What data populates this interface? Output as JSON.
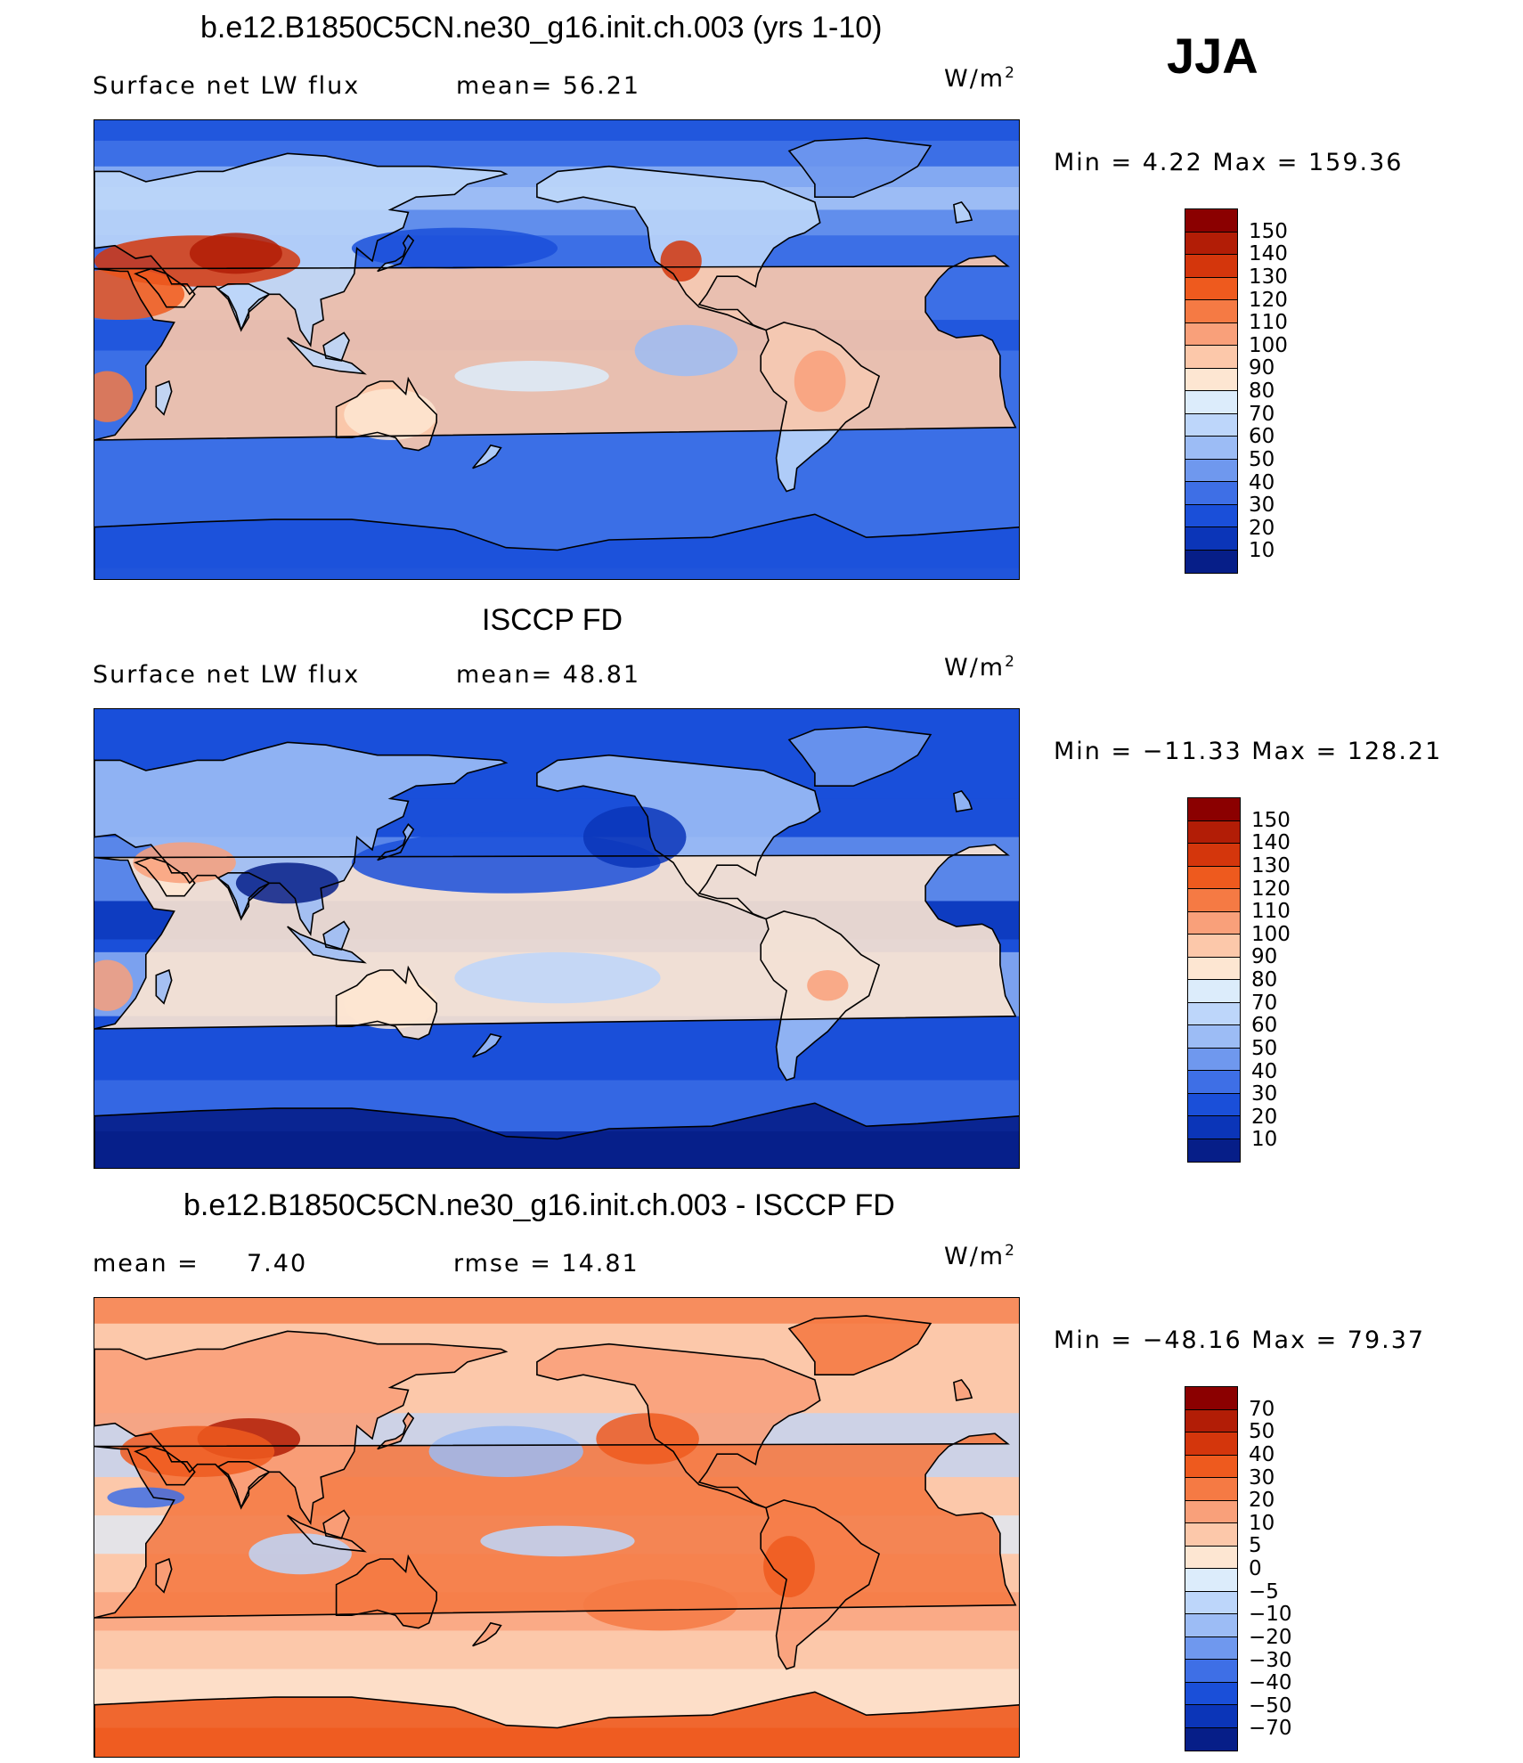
{
  "season": "JJA",
  "units_base": "W/m",
  "units_exp": "2",
  "panels": [
    {
      "title": "b.e12.B1850C5CN.ne30_g16.init.ch.003 (yrs 1-10)",
      "left_label": "Surface net LW flux",
      "stat1": "mean=   56.21",
      "stat2": "",
      "minmax": "Min  =    4.22  Max  =  159.36",
      "colorbar_labels": [
        "150",
        "140",
        "130",
        "120",
        "110",
        "100",
        "90",
        "80",
        "70",
        "60",
        "50",
        "40",
        "30",
        "20",
        "10"
      ],
      "colorbar_colors": [
        "#8b0000",
        "#b21d06",
        "#d4360c",
        "#ee5a1e",
        "#f57a44",
        "#f9a07a",
        "#fcc8aa",
        "#fde6d2",
        "#dcecfb",
        "#bdd6fa",
        "#9cbcf5",
        "#6f98ee",
        "#3e6fe6",
        "#1a4fd9",
        "#0b35b8",
        "#061e88"
      ],
      "palette": "model"
    },
    {
      "title": "ISCCP FD",
      "left_label": "Surface net LW flux",
      "stat1": "mean=   48.81",
      "stat2": "",
      "minmax": "Min  = −11.33  Max  =  128.21",
      "colorbar_labels": [
        "150",
        "140",
        "130",
        "120",
        "110",
        "100",
        "90",
        "80",
        "70",
        "60",
        "50",
        "40",
        "30",
        "20",
        "10"
      ],
      "colorbar_colors": [
        "#8b0000",
        "#b21d06",
        "#d4360c",
        "#ee5a1e",
        "#f57a44",
        "#f9a07a",
        "#fcc8aa",
        "#fde6d2",
        "#dcecfb",
        "#bdd6fa",
        "#9cbcf5",
        "#6f98ee",
        "#3e6fe6",
        "#1a4fd9",
        "#0b35b8",
        "#061e88"
      ],
      "palette": "obs"
    },
    {
      "title": "b.e12.B1850C5CN.ne30_g16.init.ch.003 - ISCCP FD",
      "left_label": "mean  =",
      "stat1": "7.40",
      "stat2": "rmse  =    14.81",
      "minmax": "Min  = −48.16  Max  =   79.37",
      "colorbar_labels": [
        "70",
        "50",
        "40",
        "30",
        "20",
        "10",
        "5",
        "0",
        "−5",
        "−10",
        "−20",
        "−30",
        "−40",
        "−50",
        "−70"
      ],
      "colorbar_colors": [
        "#8b0000",
        "#b21d06",
        "#d4360c",
        "#ee5a1e",
        "#f57a44",
        "#f9a07a",
        "#fcc8aa",
        "#fde6d2",
        "#dcecfb",
        "#bdd6fa",
        "#9cbcf5",
        "#6f98ee",
        "#3e6fe6",
        "#1a4fd9",
        "#0b35b8",
        "#061e88"
      ],
      "palette": "diff"
    }
  ]
}
